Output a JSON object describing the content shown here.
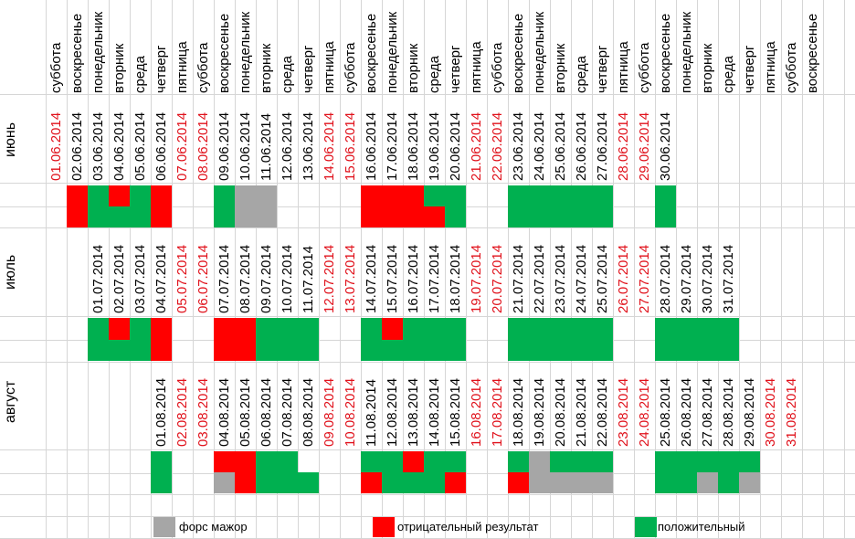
{
  "colors": {
    "force_majeure": "#a6a6a6",
    "negative": "#ff0000",
    "positive": "#00b050",
    "weekend_text": "#e0101a",
    "normal_text": "#000000"
  },
  "weekdays": [
    "суббота",
    "воскресенье",
    "понедельник",
    "вторник",
    "среда",
    "четверг",
    "пятница",
    "суббота",
    "воскресенье",
    "понедельник",
    "вторник",
    "среда",
    "четверг",
    "пятница",
    "суббота",
    "воскресенье",
    "понедельник",
    "вторник",
    "среда",
    "четверг",
    "пятница",
    "суббота",
    "воскресенье",
    "понедельник",
    "вторник",
    "среда",
    "четверг",
    "пятница",
    "суббота",
    "воскресенье",
    "понедельник",
    "вторник",
    "среда",
    "четверг",
    "пятница",
    "суббота",
    "воскресенье"
  ],
  "months": [
    {
      "name": "июнь",
      "dates": [
        {
          "col": 1,
          "text": "01.06.2014",
          "weekend": true
        },
        {
          "col": 2,
          "text": "02.06.2014",
          "weekend": false
        },
        {
          "col": 3,
          "text": "03.06.2014",
          "weekend": false
        },
        {
          "col": 4,
          "text": "04.06.2014",
          "weekend": false
        },
        {
          "col": 5,
          "text": "05.06.2014",
          "weekend": false
        },
        {
          "col": 6,
          "text": "06.06.2014",
          "weekend": false
        },
        {
          "col": 7,
          "text": "07.06.2014",
          "weekend": true
        },
        {
          "col": 8,
          "text": "08.06.2014",
          "weekend": true
        },
        {
          "col": 9,
          "text": "09.06.2014",
          "weekend": false
        },
        {
          "col": 10,
          "text": "10.06.2014",
          "weekend": false
        },
        {
          "col": 11,
          "text": "11.06.2014",
          "weekend": false
        },
        {
          "col": 12,
          "text": "12.06.2014",
          "weekend": false
        },
        {
          "col": 13,
          "text": "13.06.2014",
          "weekend": false
        },
        {
          "col": 14,
          "text": "14.06.2014",
          "weekend": true
        },
        {
          "col": 15,
          "text": "15.06.2014",
          "weekend": true
        },
        {
          "col": 16,
          "text": "16.06.2014",
          "weekend": false
        },
        {
          "col": 17,
          "text": "17.06.2014",
          "weekend": false
        },
        {
          "col": 18,
          "text": "18.06.2014",
          "weekend": false
        },
        {
          "col": 19,
          "text": "19.06.2014",
          "weekend": false
        },
        {
          "col": 20,
          "text": "20.06.2014",
          "weekend": false
        },
        {
          "col": 21,
          "text": "21.06.2014",
          "weekend": true
        },
        {
          "col": 22,
          "text": "22.06.2014",
          "weekend": true
        },
        {
          "col": 23,
          "text": "23.06.2014",
          "weekend": false
        },
        {
          "col": 24,
          "text": "24.06.2014",
          "weekend": false
        },
        {
          "col": 25,
          "text": "25.06.2014",
          "weekend": false
        },
        {
          "col": 26,
          "text": "26.06.2014",
          "weekend": false
        },
        {
          "col": 27,
          "text": "27.06.2014",
          "weekend": false
        },
        {
          "col": 28,
          "text": "28.06.2014",
          "weekend": true
        },
        {
          "col": 29,
          "text": "29.06.2014",
          "weekend": true
        },
        {
          "col": 30,
          "text": "30.06.2014",
          "weekend": false
        }
      ],
      "status": [
        {
          "col": 2,
          "top": "negative",
          "bottom": "negative"
        },
        {
          "col": 3,
          "top": "positive",
          "bottom": "positive"
        },
        {
          "col": 4,
          "top": "negative",
          "bottom": "positive"
        },
        {
          "col": 5,
          "top": "positive",
          "bottom": "positive"
        },
        {
          "col": 6,
          "top": "negative",
          "bottom": "negative"
        },
        {
          "col": 9,
          "top": "positive",
          "bottom": "positive"
        },
        {
          "col": 10,
          "top": "force_majeure",
          "bottom": "force_majeure"
        },
        {
          "col": 11,
          "top": "force_majeure",
          "bottom": "force_majeure"
        },
        {
          "col": 16,
          "top": "negative",
          "bottom": "negative"
        },
        {
          "col": 17,
          "top": "negative",
          "bottom": "negative"
        },
        {
          "col": 18,
          "top": "negative",
          "bottom": "negative"
        },
        {
          "col": 19,
          "top": "positive",
          "bottom": "negative"
        },
        {
          "col": 20,
          "top": "positive",
          "bottom": "positive"
        },
        {
          "col": 23,
          "top": "positive",
          "bottom": "positive"
        },
        {
          "col": 24,
          "top": "positive",
          "bottom": "positive"
        },
        {
          "col": 25,
          "top": "positive",
          "bottom": "positive"
        },
        {
          "col": 26,
          "top": "positive",
          "bottom": "positive"
        },
        {
          "col": 27,
          "top": "positive",
          "bottom": "positive"
        },
        {
          "col": 30,
          "top": "positive",
          "bottom": "positive"
        }
      ]
    },
    {
      "name": "июль",
      "dates": [
        {
          "col": 3,
          "text": "01.07.2014",
          "weekend": false
        },
        {
          "col": 4,
          "text": "02.07.2014",
          "weekend": false
        },
        {
          "col": 5,
          "text": "03.07.2014",
          "weekend": false
        },
        {
          "col": 6,
          "text": "04.07.2014",
          "weekend": false
        },
        {
          "col": 7,
          "text": "05.07.2014",
          "weekend": true
        },
        {
          "col": 8,
          "text": "06.07.2014",
          "weekend": true
        },
        {
          "col": 9,
          "text": "07.07.2014",
          "weekend": false
        },
        {
          "col": 10,
          "text": "08.07.2014",
          "weekend": false
        },
        {
          "col": 11,
          "text": "09.07.2014",
          "weekend": false
        },
        {
          "col": 12,
          "text": "10.07.2014",
          "weekend": false
        },
        {
          "col": 13,
          "text": "11.07.2014",
          "weekend": false
        },
        {
          "col": 14,
          "text": "12.07.2014",
          "weekend": true
        },
        {
          "col": 15,
          "text": "13.07.2014",
          "weekend": true
        },
        {
          "col": 16,
          "text": "14.07.2014",
          "weekend": false
        },
        {
          "col": 17,
          "text": "15.07.2014",
          "weekend": false
        },
        {
          "col": 18,
          "text": "16.07.2014",
          "weekend": false
        },
        {
          "col": 19,
          "text": "17.07.2014",
          "weekend": false
        },
        {
          "col": 20,
          "text": "18.07.2014",
          "weekend": false
        },
        {
          "col": 21,
          "text": "19.07.2014",
          "weekend": true
        },
        {
          "col": 22,
          "text": "20.07.2014",
          "weekend": true
        },
        {
          "col": 23,
          "text": "21.07.2014",
          "weekend": false
        },
        {
          "col": 24,
          "text": "22.07.2014",
          "weekend": false
        },
        {
          "col": 25,
          "text": "23.07.2014",
          "weekend": false
        },
        {
          "col": 26,
          "text": "24.07.2014",
          "weekend": false
        },
        {
          "col": 27,
          "text": "25.07.2014",
          "weekend": false
        },
        {
          "col": 28,
          "text": "26.07.2014",
          "weekend": true
        },
        {
          "col": 29,
          "text": "27.07.2014",
          "weekend": true
        },
        {
          "col": 30,
          "text": "28.07.2014",
          "weekend": false
        },
        {
          "col": 31,
          "text": "29.07.2014",
          "weekend": false
        },
        {
          "col": 32,
          "text": "30.07.2014",
          "weekend": false
        },
        {
          "col": 33,
          "text": "31.07.2014",
          "weekend": false
        }
      ],
      "status": [
        {
          "col": 3,
          "top": "positive",
          "bottom": "positive"
        },
        {
          "col": 4,
          "top": "negative",
          "bottom": "positive"
        },
        {
          "col": 5,
          "top": "positive",
          "bottom": "positive"
        },
        {
          "col": 6,
          "top": "negative",
          "bottom": "negative"
        },
        {
          "col": 9,
          "top": "negative",
          "bottom": "negative"
        },
        {
          "col": 10,
          "top": "negative",
          "bottom": "negative"
        },
        {
          "col": 11,
          "top": "positive",
          "bottom": "positive"
        },
        {
          "col": 12,
          "top": "positive",
          "bottom": "positive"
        },
        {
          "col": 13,
          "top": "positive",
          "bottom": "positive"
        },
        {
          "col": 16,
          "top": "positive",
          "bottom": "positive"
        },
        {
          "col": 17,
          "top": "negative",
          "bottom": "positive"
        },
        {
          "col": 18,
          "top": "positive",
          "bottom": "positive"
        },
        {
          "col": 19,
          "top": "positive",
          "bottom": "positive"
        },
        {
          "col": 20,
          "top": "positive",
          "bottom": "positive"
        },
        {
          "col": 23,
          "top": "positive",
          "bottom": "positive"
        },
        {
          "col": 24,
          "top": "positive",
          "bottom": "positive"
        },
        {
          "col": 25,
          "top": "positive",
          "bottom": "positive"
        },
        {
          "col": 26,
          "top": "positive",
          "bottom": "positive"
        },
        {
          "col": 27,
          "top": "positive",
          "bottom": "positive"
        },
        {
          "col": 30,
          "top": "positive",
          "bottom": "positive"
        },
        {
          "col": 31,
          "top": "positive",
          "bottom": "positive"
        },
        {
          "col": 32,
          "top": "positive",
          "bottom": "positive"
        },
        {
          "col": 33,
          "top": "positive",
          "bottom": "positive"
        }
      ]
    },
    {
      "name": "август",
      "dates": [
        {
          "col": 6,
          "text": "01.08.2014",
          "weekend": false
        },
        {
          "col": 7,
          "text": "02.08.2014",
          "weekend": true
        },
        {
          "col": 8,
          "text": "03.08.2014",
          "weekend": true
        },
        {
          "col": 9,
          "text": "04.08.2014",
          "weekend": false
        },
        {
          "col": 10,
          "text": "05.08.2014",
          "weekend": false
        },
        {
          "col": 11,
          "text": "06.08.2014",
          "weekend": false
        },
        {
          "col": 12,
          "text": "07.08.2014",
          "weekend": false
        },
        {
          "col": 13,
          "text": "08.08.2014",
          "weekend": false
        },
        {
          "col": 14,
          "text": "09.08.2014",
          "weekend": true
        },
        {
          "col": 15,
          "text": "10.08.2014",
          "weekend": true
        },
        {
          "col": 16,
          "text": "11.08.2014",
          "weekend": false
        },
        {
          "col": 17,
          "text": "12.08.2014",
          "weekend": false
        },
        {
          "col": 18,
          "text": "13.08.2014",
          "weekend": false
        },
        {
          "col": 19,
          "text": "14.08.2014",
          "weekend": false
        },
        {
          "col": 20,
          "text": "15.08.2014",
          "weekend": false
        },
        {
          "col": 21,
          "text": "16.08.2014",
          "weekend": true
        },
        {
          "col": 22,
          "text": "17.08.2014",
          "weekend": true
        },
        {
          "col": 23,
          "text": "18.08.2014",
          "weekend": false
        },
        {
          "col": 24,
          "text": "19.08.2014",
          "weekend": false
        },
        {
          "col": 25,
          "text": "20.08.2014",
          "weekend": false
        },
        {
          "col": 26,
          "text": "21.08.2014",
          "weekend": false
        },
        {
          "col": 27,
          "text": "22.08.2014",
          "weekend": false
        },
        {
          "col": 28,
          "text": "23.08.2014",
          "weekend": true
        },
        {
          "col": 29,
          "text": "24.08.2014",
          "weekend": true
        },
        {
          "col": 30,
          "text": "25.08.2014",
          "weekend": false
        },
        {
          "col": 31,
          "text": "26.08.2014",
          "weekend": false
        },
        {
          "col": 32,
          "text": "27.08.2014",
          "weekend": false
        },
        {
          "col": 33,
          "text": "28.08.2014",
          "weekend": false
        },
        {
          "col": 34,
          "text": "29.08.2014",
          "weekend": false
        },
        {
          "col": 35,
          "text": "30.08.2014",
          "weekend": true
        },
        {
          "col": 36,
          "text": "31.08.2014",
          "weekend": true
        }
      ],
      "status": [
        {
          "col": 6,
          "top": "positive",
          "bottom": "positive"
        },
        {
          "col": 9,
          "top": "negative",
          "bottom": "force_majeure"
        },
        {
          "col": 10,
          "top": "negative",
          "bottom": "negative"
        },
        {
          "col": 11,
          "top": "positive",
          "bottom": "positive"
        },
        {
          "col": 12,
          "top": "positive",
          "bottom": "positive"
        },
        {
          "col": 13,
          "top": null,
          "bottom": "positive"
        },
        {
          "col": 16,
          "top": "positive",
          "bottom": "negative"
        },
        {
          "col": 17,
          "top": "positive",
          "bottom": "positive"
        },
        {
          "col": 18,
          "top": "negative",
          "bottom": "positive"
        },
        {
          "col": 19,
          "top": "positive",
          "bottom": "positive"
        },
        {
          "col": 20,
          "top": "positive",
          "bottom": "negative"
        },
        {
          "col": 23,
          "top": "positive",
          "bottom": "negative"
        },
        {
          "col": 24,
          "top": "force_majeure",
          "bottom": "force_majeure"
        },
        {
          "col": 25,
          "top": "positive",
          "bottom": "force_majeure"
        },
        {
          "col": 26,
          "top": "positive",
          "bottom": "force_majeure"
        },
        {
          "col": 27,
          "top": "positive",
          "bottom": "force_majeure"
        },
        {
          "col": 30,
          "top": "positive",
          "bottom": "positive"
        },
        {
          "col": 31,
          "top": "positive",
          "bottom": "positive"
        },
        {
          "col": 32,
          "top": "positive",
          "bottom": "force_majeure"
        },
        {
          "col": 33,
          "top": "positive",
          "bottom": "positive"
        },
        {
          "col": 34,
          "top": "positive",
          "bottom": "force_majeure"
        }
      ]
    }
  ],
  "legend": [
    {
      "key": "force_majeure",
      "label": "форс мажор"
    },
    {
      "key": "negative",
      "label": "отрицательный результат"
    },
    {
      "key": "positive",
      "label": "положительный"
    }
  ]
}
